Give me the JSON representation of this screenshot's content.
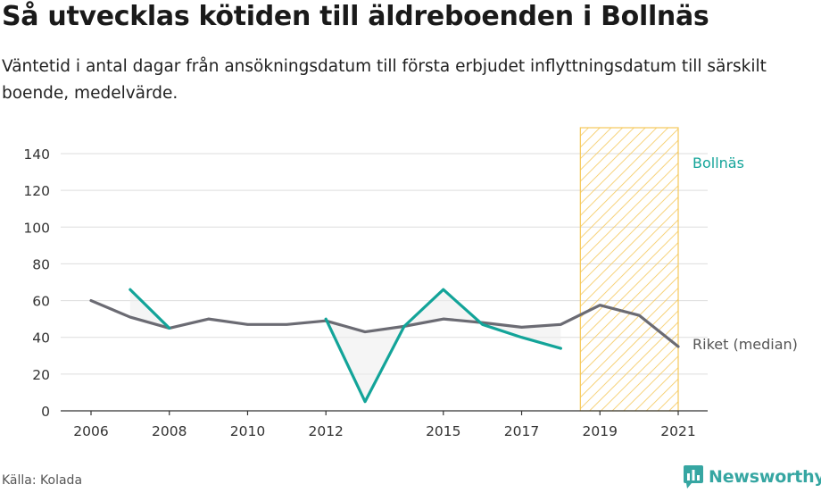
{
  "title": "Så utvecklas kötiden till äldreboenden i Bollnäs",
  "subtitle": "Väntetid i antal dagar från ansökningsdatum till första erbjudet inflyttningsdatum till särskilt boende, medelvärde.",
  "source": "Källa: Kolada",
  "brand": "Newsworthy",
  "colors": {
    "bollnas": "#13a499",
    "riket": "#6b6b73",
    "highlight": "#f5c85a",
    "grid": "#dddddd",
    "axis": "#333333"
  },
  "chart_data": {
    "type": "line",
    "title": "Så utvecklas kötiden till äldreboenden i Bollnäs",
    "xlabel": "",
    "ylabel": "",
    "xlim": [
      2006,
      2021
    ],
    "ylim": [
      0,
      155
    ],
    "yticks": [
      0,
      20,
      40,
      60,
      80,
      100,
      120,
      140
    ],
    "xticks": [
      "2006",
      "2008",
      "2010",
      "2012",
      "2015",
      "2017",
      "2019",
      "2021"
    ],
    "grid": true,
    "highlight_range": [
      2018.5,
      2021
    ],
    "series": [
      {
        "name": "Bollnäs",
        "x": [
          2007,
          2008,
          2012,
          2013,
          2014,
          2015,
          2016,
          2017,
          2018
        ],
        "values": [
          66,
          45,
          50,
          5,
          46,
          66,
          47,
          40,
          34
        ]
      },
      {
        "name": "Riket (median)",
        "x": [
          2006,
          2007,
          2008,
          2009,
          2010,
          2011,
          2012,
          2013,
          2014,
          2015,
          2016,
          2017,
          2018,
          2019,
          2020,
          2021
        ],
        "values": [
          60,
          51,
          45,
          50,
          47,
          47,
          49,
          43,
          46,
          50,
          48,
          45.5,
          47,
          57.5,
          52,
          35
        ]
      }
    ]
  }
}
